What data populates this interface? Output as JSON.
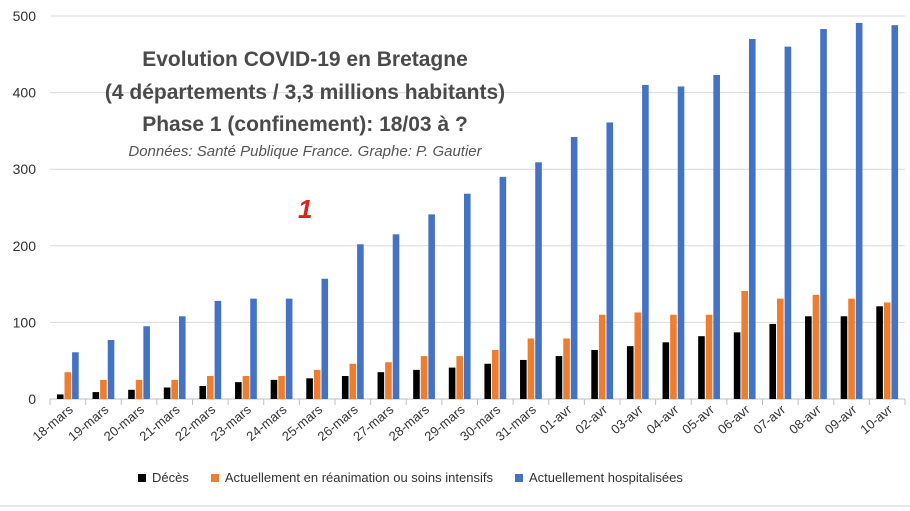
{
  "chart_data": {
    "type": "bar",
    "title_lines": [
      "Evolution COVID-19 en Bretagne",
      "(4 départements / 3,3 millions habitants)",
      "Phase 1 (confinement): 18/03 à ?"
    ],
    "subtitle": "Données: Santé Publique France. Graphe: P. Gautier",
    "annotation": "1",
    "categories": [
      "18-mars",
      "19-mars",
      "20-mars",
      "21-mars",
      "22-mars",
      "23-mars",
      "24-mars",
      "25-mars",
      "26-mars",
      "27-mars",
      "28-mars",
      "29-mars",
      "30-mars",
      "31-mars",
      "01-avr",
      "02-avr",
      "03-avr",
      "04-avr",
      "05-avr",
      "06-avr",
      "07-avr",
      "08-avr",
      "09-avr",
      "10-avr"
    ],
    "series": [
      {
        "name": "Décès",
        "color": "#000000",
        "values": [
          6,
          9,
          12,
          15,
          17,
          22,
          25,
          27,
          30,
          35,
          38,
          41,
          46,
          51,
          56,
          64,
          69,
          74,
          82,
          87,
          98,
          108,
          108,
          121
        ]
      },
      {
        "name": "Actuellement en réanimation ou soins intensifs",
        "color": "#ed7d31",
        "values": [
          35,
          25,
          25,
          25,
          30,
          30,
          30,
          38,
          46,
          48,
          56,
          56,
          64,
          79,
          79,
          110,
          113,
          110,
          110,
          141,
          131,
          136,
          131,
          126
        ]
      },
      {
        "name": "Actuellement hospitalisées",
        "color": "#4472c4",
        "values": [
          61,
          77,
          95,
          108,
          128,
          131,
          131,
          157,
          202,
          215,
          241,
          268,
          290,
          309,
          342,
          361,
          410,
          408,
          423,
          470,
          460,
          483,
          491,
          488
        ]
      }
    ],
    "ylim": [
      0,
      500
    ],
    "yticks": [
      0,
      100,
      200,
      300,
      400,
      500
    ],
    "xlabel": "",
    "ylabel": "",
    "grid": true,
    "legend_position": "bottom"
  }
}
